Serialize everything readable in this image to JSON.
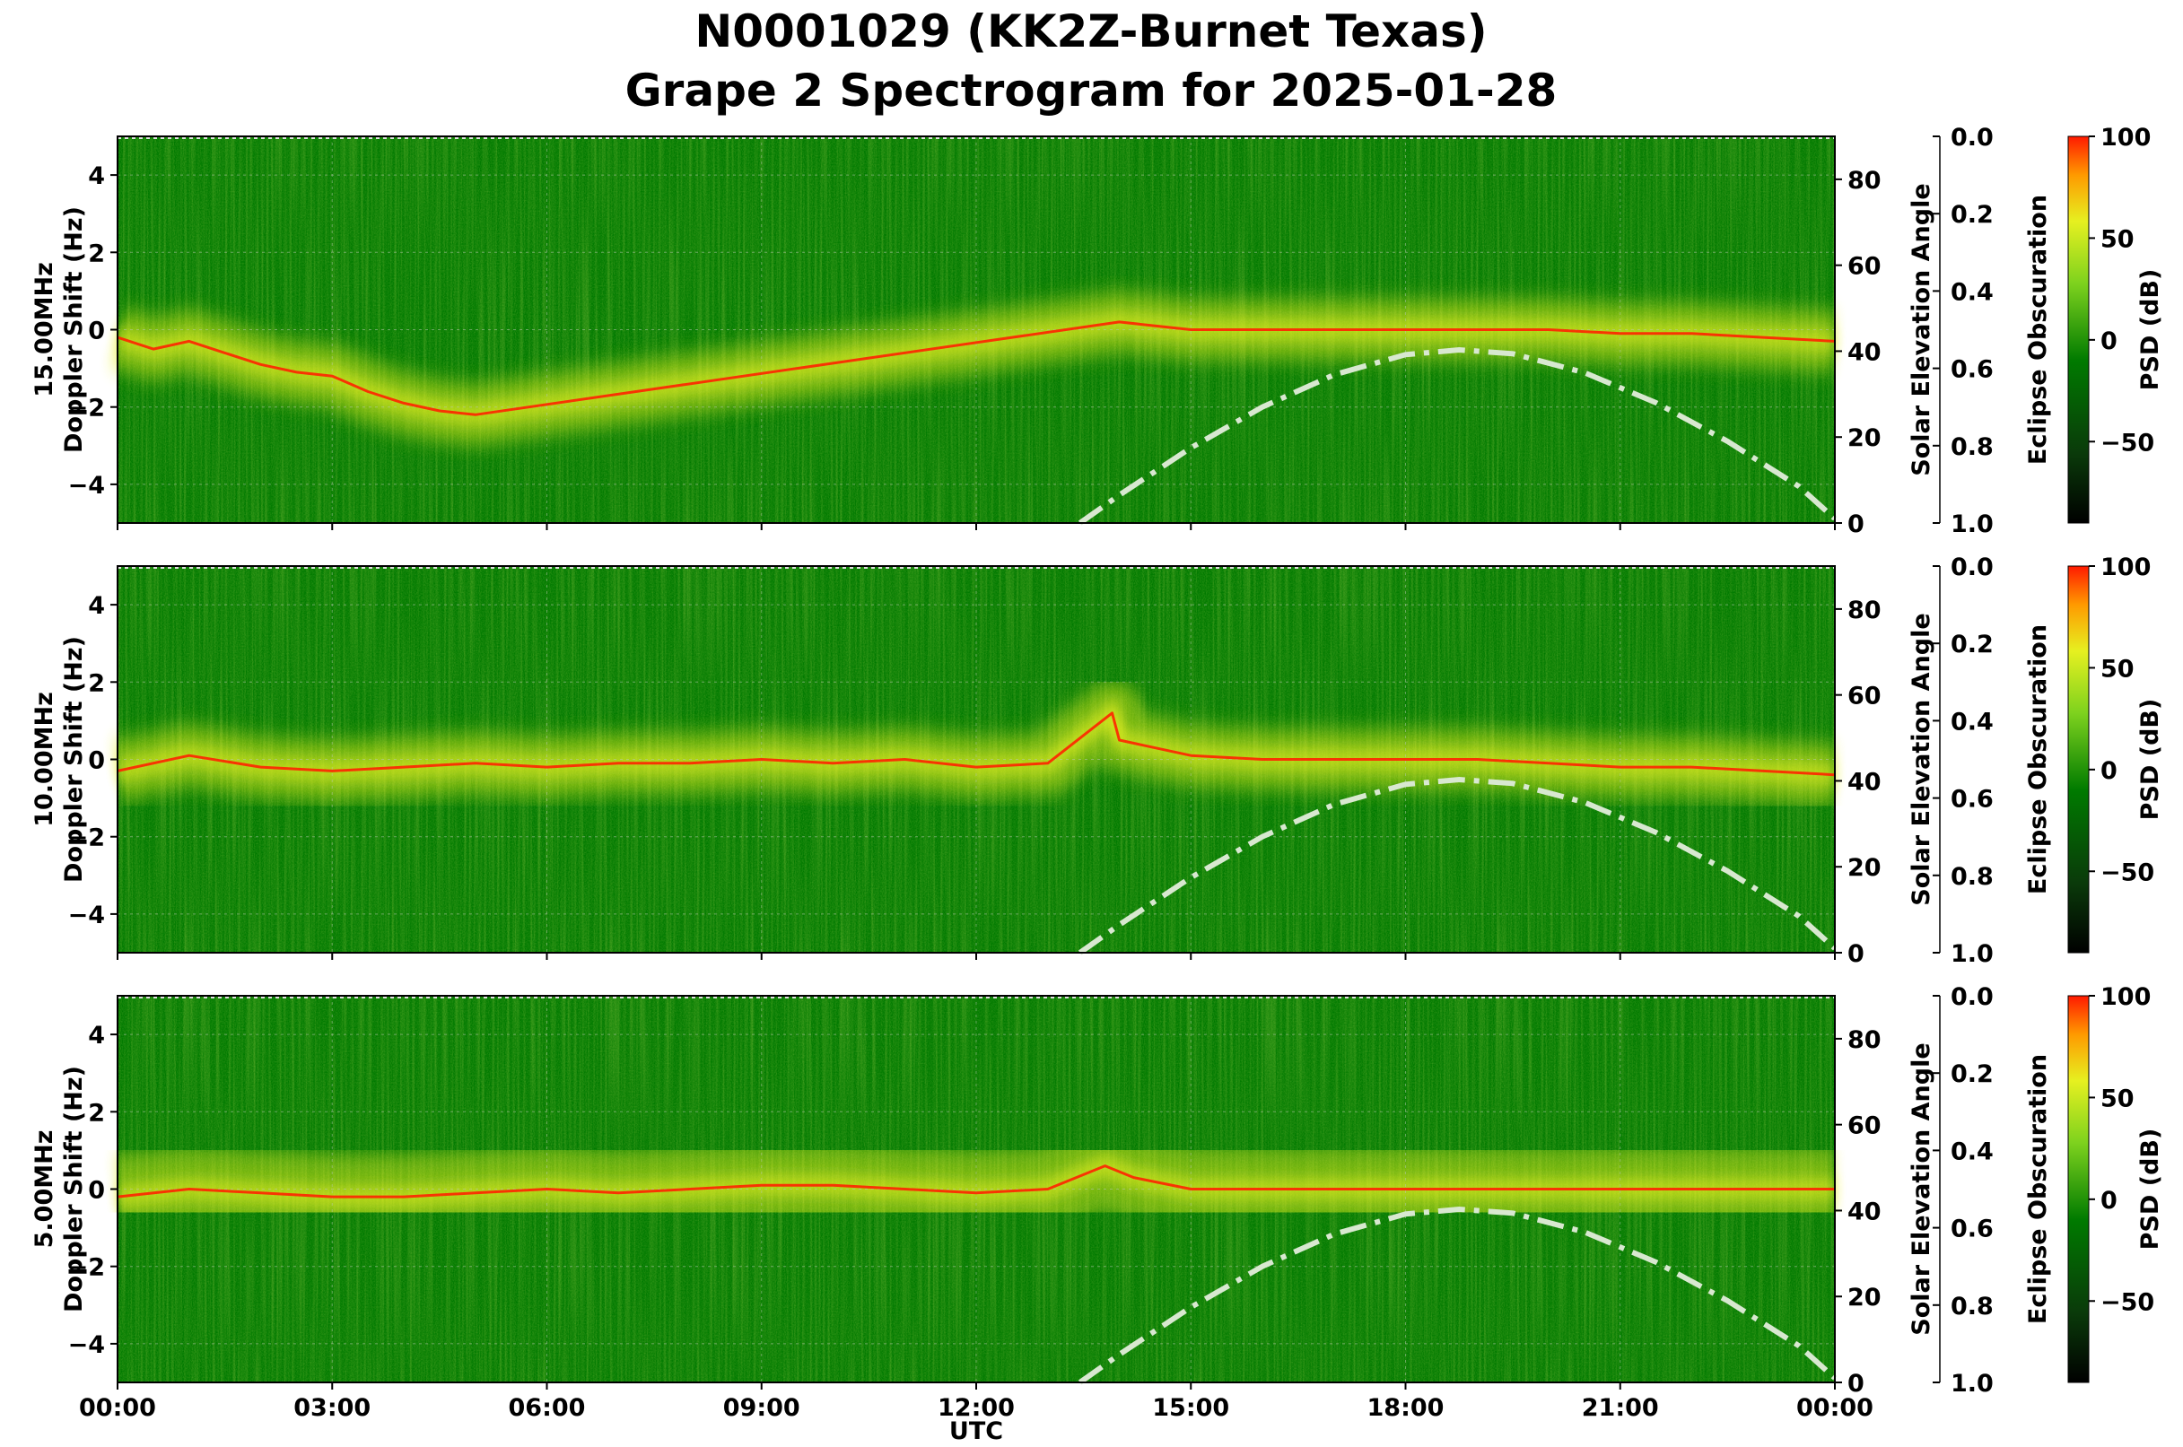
{
  "chart_data": {
    "type": "heatmap",
    "title_line1": "N0001029 (KK2Z-Burnet Texas)",
    "title_line2": "Grape 2 Spectrogram for 2025-01-28",
    "xlabel": "UTC",
    "x_ticks": [
      "00:00",
      "03:00",
      "06:00",
      "09:00",
      "12:00",
      "15:00",
      "18:00",
      "21:00",
      "00:00"
    ],
    "x_range_hours": [
      0,
      24
    ],
    "doppler_ylim": [
      -5,
      5
    ],
    "doppler_ticks": [
      4,
      2,
      0,
      -2,
      -4
    ],
    "elevation_ylim": [
      0,
      90
    ],
    "elevation_ticks": [
      80,
      60,
      40,
      20,
      0
    ],
    "eclipse_ticks": [
      "0.0",
      "0.2",
      "0.4",
      "0.6",
      "0.8",
      "1.0"
    ],
    "colorbar": {
      "label": "PSD (dB)",
      "range": [
        -90,
        100
      ],
      "ticks": [
        "100",
        "50",
        "0",
        "−50"
      ]
    },
    "right_axis_label": "Solar Elevation Angle",
    "eclipse_axis_label": "Eclipse Obscuration",
    "colors": {
      "dark_green": "#0a3a0a",
      "green": "#007a00",
      "yellow": "#e6f020",
      "red": "#ff2200",
      "elevation_curve": "#d8e8d0"
    },
    "solar_elevation": {
      "hours": [
        13.45,
        14,
        15,
        16,
        17,
        18,
        18.75,
        19.5,
        20.5,
        21.5,
        22.5,
        23.5,
        24
      ],
      "degrees": [
        0,
        6.5,
        17.5,
        27,
        34.5,
        39.2,
        40.3,
        39.4,
        35,
        28,
        19,
        8.5,
        1
      ]
    },
    "panels": [
      {
        "freq_label": "15.00MHz",
        "ylabel": "Doppler Shift (Hz)",
        "trace": {
          "hours": [
            0,
            0.5,
            1,
            1.5,
            2,
            2.5,
            3,
            3.5,
            4,
            4.5,
            5,
            14,
            14.5,
            15,
            16,
            17,
            18,
            19,
            20,
            21,
            22,
            23,
            24
          ],
          "hz": [
            -0.2,
            -0.5,
            -0.3,
            -0.6,
            -0.9,
            -1.1,
            -1.2,
            -1.6,
            -1.9,
            -2.1,
            -2.2,
            0.2,
            0.1,
            0.0,
            0.0,
            0.0,
            0.0,
            0.0,
            0.0,
            -0.1,
            -0.1,
            -0.2,
            -0.3
          ]
        }
      },
      {
        "freq_label": "10.00MHz",
        "ylabel": "Doppler Shift (Hz)",
        "trace": {
          "hours": [
            0,
            1,
            2,
            3,
            4,
            5,
            6,
            7,
            8,
            9,
            10,
            11,
            12,
            13,
            13.9,
            14,
            15,
            16,
            17,
            18,
            19,
            20,
            21,
            22,
            23,
            24
          ],
          "hz": [
            -0.3,
            0.1,
            -0.2,
            -0.3,
            -0.2,
            -0.1,
            -0.2,
            -0.1,
            -0.1,
            0.0,
            -0.1,
            0.0,
            -0.2,
            -0.1,
            1.2,
            0.5,
            0.1,
            0.0,
            0.0,
            0.0,
            0.0,
            -0.1,
            -0.2,
            -0.2,
            -0.3,
            -0.4
          ]
        }
      },
      {
        "freq_label": "5.00MHz",
        "ylabel": "Doppler Shift (Hz)",
        "trace": {
          "hours": [
            0,
            1,
            2,
            3,
            4,
            5,
            6,
            7,
            8,
            9,
            10,
            11,
            12,
            13,
            13.8,
            14.2,
            15,
            18,
            21,
            24
          ],
          "hz": [
            -0.2,
            0.0,
            -0.1,
            -0.2,
            -0.2,
            -0.1,
            0.0,
            -0.1,
            0.0,
            0.1,
            0.1,
            0.0,
            -0.1,
            0.0,
            0.6,
            0.3,
            0.0,
            0.0,
            0.0,
            0.0
          ]
        }
      }
    ]
  }
}
